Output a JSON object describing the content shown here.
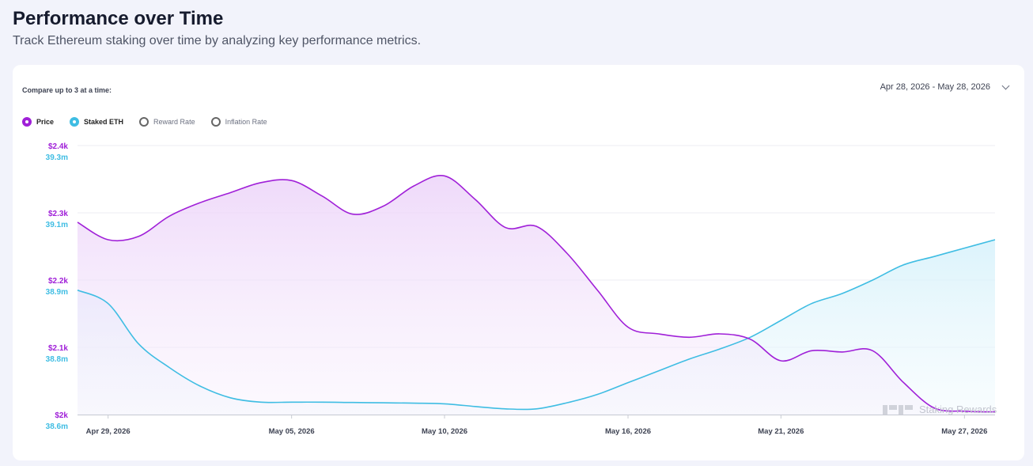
{
  "header": {
    "title": "Performance over Time",
    "subtitle": "Track Ethereum staking over time by analyzing key performance metrics."
  },
  "controls": {
    "compare_label": "Compare up to 3 at a time:",
    "date_range": "Apr 28, 2026 - May 28, 2026",
    "metrics": [
      {
        "label": "Price",
        "selected": true,
        "color": "#a020d8"
      },
      {
        "label": "Staked ETH",
        "selected": true,
        "color": "#3fbde3"
      },
      {
        "label": "Reward Rate",
        "selected": false,
        "color": "#666666"
      },
      {
        "label": "Inflation Rate",
        "selected": false,
        "color": "#666666"
      }
    ]
  },
  "watermark": "Staking Rewards",
  "chart_data": {
    "type": "area",
    "x": [
      "2026-04-28",
      "2026-04-29",
      "2026-04-30",
      "2026-05-01",
      "2026-05-02",
      "2026-05-03",
      "2026-05-04",
      "2026-05-05",
      "2026-05-06",
      "2026-05-07",
      "2026-05-08",
      "2026-05-09",
      "2026-05-10",
      "2026-05-11",
      "2026-05-12",
      "2026-05-13",
      "2026-05-14",
      "2026-05-15",
      "2026-05-16",
      "2026-05-17",
      "2026-05-18",
      "2026-05-19",
      "2026-05-20",
      "2026-05-21",
      "2026-05-22",
      "2026-05-23",
      "2026-05-24",
      "2026-05-25",
      "2026-05-26",
      "2026-05-27",
      "2026-05-28"
    ],
    "x_ticks": [
      "Apr 29, 2026",
      "May 05, 2026",
      "May 10, 2026",
      "May 16, 2026",
      "May 21, 2026",
      "May 27, 2026"
    ],
    "x_tick_dates": [
      "2026-04-29",
      "2026-05-05",
      "2026-05-10",
      "2026-05-16",
      "2026-05-21",
      "2026-05-27"
    ],
    "grid": true,
    "series": [
      {
        "name": "Price",
        "axis": "left",
        "color": "#a020d8",
        "fill": "#f3e3fb",
        "values": [
          2286,
          2260,
          2265,
          2295,
          2315,
          2330,
          2345,
          2348,
          2325,
          2298,
          2310,
          2340,
          2355,
          2320,
          2278,
          2280,
          2240,
          2185,
          2130,
          2120,
          2115,
          2120,
          2112,
          2080,
          2095,
          2093,
          2095,
          2048,
          2010,
          2005,
          2004
        ]
      },
      {
        "name": "Staked ETH",
        "axis": "right",
        "color": "#3fbde3",
        "fill": "#e6f7fc",
        "values": [
          38.885,
          38.865,
          38.805,
          38.74,
          38.685,
          38.65,
          38.637,
          38.637,
          38.637,
          38.636,
          38.635,
          38.634,
          38.632,
          38.624,
          38.617,
          38.617,
          38.635,
          38.66,
          38.695,
          38.73,
          38.765,
          38.795,
          38.815,
          38.84,
          38.865,
          38.88,
          38.9,
          38.945,
          38.97,
          38.995,
          39.02
        ]
      }
    ],
    "y_left": {
      "ticks": [
        2000,
        2100,
        2200,
        2300,
        2400
      ],
      "tick_labels": [
        "$2k",
        "$2.1k",
        "$2.2k",
        "$2.3k",
        "$2.4k"
      ],
      "range": [
        2000,
        2400
      ],
      "color": "#a020d8"
    },
    "y_right": {
      "ticks": [
        38.6,
        38.8,
        38.9,
        39.1,
        39.3
      ],
      "tick_labels": [
        "38.6m",
        "38.8m",
        "38.9m",
        "39.1m",
        "39.3m"
      ],
      "color": "#3fbde3"
    }
  }
}
